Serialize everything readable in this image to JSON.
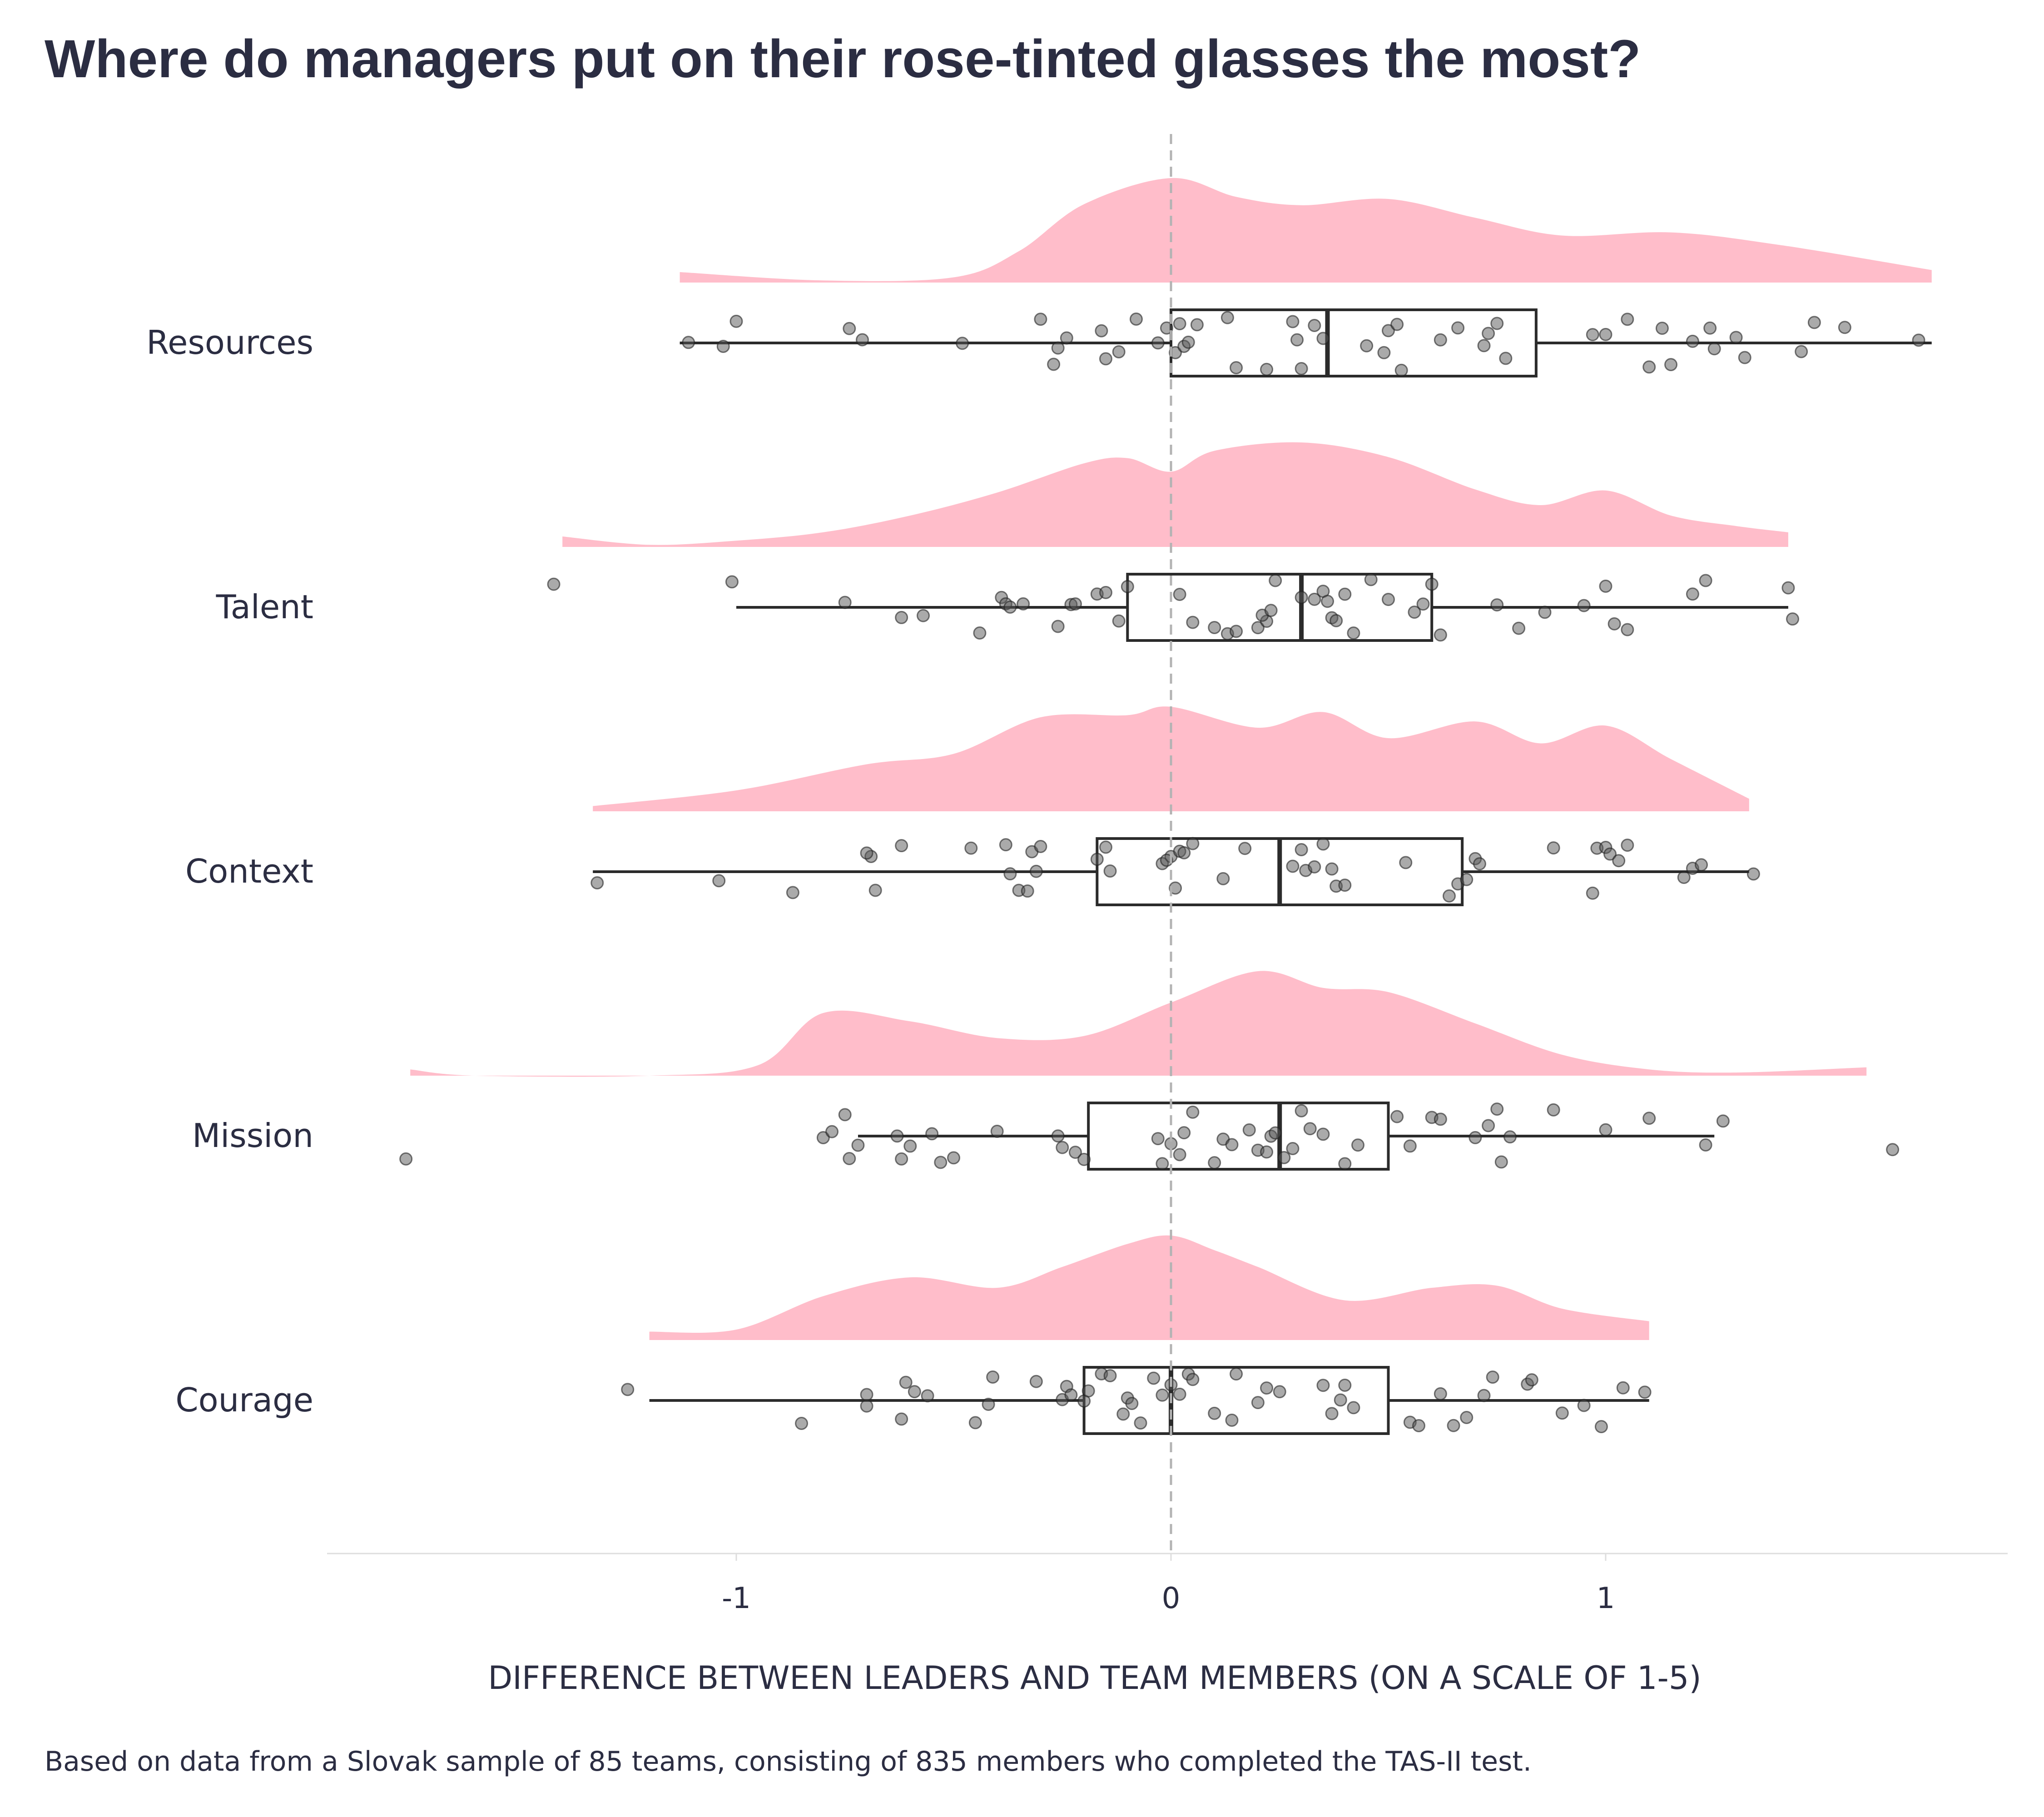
{
  "chart_data": {
    "type": "raincloud",
    "title": "Where do managers put on their rose-tinted glasses the most?",
    "xlabel": "DIFFERENCE BETWEEN LEADERS AND TEAM MEMBERS (ON A SCALE OF 1-5)",
    "caption": "Based on data from a Slovak sample of 85 teams, consisting of 835 members who completed the TAS-II test.",
    "xlim": [
      -1.95,
      1.9
    ],
    "xticks": [
      -1,
      0,
      1
    ],
    "xtick_labels": [
      "-1",
      "0",
      "1"
    ],
    "reference_line": 0,
    "colors": {
      "density": "#ffbdca",
      "box": "#2b2b2b",
      "points": "#555555",
      "text": "#2b2d42"
    },
    "categories": [
      "Resources",
      "Talent",
      "Context",
      "Mission",
      "Courage"
    ],
    "series": [
      {
        "name": "Resources",
        "box": {
          "whisker_low": -1.13,
          "q1": 0.0,
          "median": 0.36,
          "q3": 0.84,
          "whisker_high": 1.75
        },
        "density": {
          "x": [
            -1.13,
            -0.8,
            -0.5,
            -0.35,
            -0.2,
            0.0,
            0.15,
            0.3,
            0.5,
            0.7,
            0.9,
            1.15,
            1.4,
            1.75
          ],
          "y": [
            0.1,
            0.02,
            0.05,
            0.3,
            0.75,
            1.0,
            0.82,
            0.74,
            0.8,
            0.62,
            0.45,
            0.48,
            0.36,
            0.12
          ]
        },
        "points": [
          -1.11,
          -1.03,
          -1.0,
          -0.74,
          -0.71,
          -0.48,
          -0.3,
          -0.27,
          -0.26,
          -0.24,
          -0.16,
          -0.15,
          -0.12,
          -0.08,
          -0.03,
          -0.01,
          0.01,
          0.02,
          0.03,
          0.04,
          0.06,
          0.13,
          0.15,
          0.22,
          0.28,
          0.29,
          0.3,
          0.33,
          0.35,
          0.45,
          0.49,
          0.5,
          0.52,
          0.53,
          0.62,
          0.66,
          0.72,
          0.73,
          0.75,
          0.77,
          0.97,
          1.0,
          1.05,
          1.1,
          1.13,
          1.15,
          1.2,
          1.24,
          1.25,
          1.3,
          1.32,
          1.45,
          1.48,
          1.55,
          1.72
        ]
      },
      {
        "name": "Talent",
        "box": {
          "whisker_low": -1.0,
          "q1": -0.1,
          "median": 0.3,
          "q3": 0.6,
          "whisker_high": 1.42
        },
        "density": {
          "x": [
            -1.4,
            -1.2,
            -1.0,
            -0.8,
            -0.6,
            -0.4,
            -0.2,
            -0.1,
            0.0,
            0.1,
            0.3,
            0.5,
            0.7,
            0.85,
            1.0,
            1.15,
            1.3,
            1.42
          ],
          "y": [
            0.1,
            0.02,
            0.06,
            0.14,
            0.3,
            0.52,
            0.8,
            0.85,
            0.72,
            0.92,
            1.0,
            0.86,
            0.55,
            0.4,
            0.54,
            0.3,
            0.2,
            0.14
          ]
        },
        "points": [
          -1.42,
          -1.01,
          -0.75,
          -0.62,
          -0.57,
          -0.44,
          -0.39,
          -0.38,
          -0.37,
          -0.34,
          -0.26,
          -0.23,
          -0.22,
          -0.17,
          -0.15,
          -0.12,
          -0.1,
          0.02,
          0.05,
          0.1,
          0.13,
          0.15,
          0.2,
          0.22,
          0.21,
          0.23,
          0.24,
          0.3,
          0.33,
          0.35,
          0.36,
          0.37,
          0.38,
          0.4,
          0.42,
          0.46,
          0.5,
          0.56,
          0.58,
          0.6,
          0.62,
          0.75,
          0.8,
          0.86,
          0.95,
          1.0,
          1.02,
          1.05,
          1.2,
          1.23,
          1.42,
          1.43
        ]
      },
      {
        "name": "Context",
        "box": {
          "whisker_low": -1.33,
          "q1": -0.17,
          "median": 0.25,
          "q3": 0.67,
          "whisker_high": 1.33
        },
        "density": {
          "x": [
            -1.33,
            -1.0,
            -0.7,
            -0.5,
            -0.3,
            -0.1,
            0.0,
            0.2,
            0.35,
            0.5,
            0.7,
            0.85,
            1.0,
            1.15,
            1.33
          ],
          "y": [
            0.05,
            0.2,
            0.45,
            0.55,
            0.9,
            0.92,
            1.0,
            0.8,
            0.95,
            0.7,
            0.86,
            0.65,
            0.82,
            0.5,
            0.12
          ]
        },
        "points": [
          -1.32,
          -1.04,
          -0.87,
          -0.69,
          -0.68,
          -0.7,
          -0.62,
          -0.46,
          -0.38,
          -0.37,
          -0.35,
          -0.33,
          -0.32,
          -0.31,
          -0.3,
          -0.17,
          -0.14,
          -0.15,
          -0.02,
          0.0,
          -0.01,
          0.01,
          0.02,
          0.03,
          0.05,
          0.12,
          0.17,
          0.28,
          0.3,
          0.31,
          0.33,
          0.35,
          0.38,
          0.37,
          0.4,
          0.54,
          0.64,
          0.66,
          0.68,
          0.7,
          0.71,
          0.88,
          0.97,
          0.98,
          1.0,
          1.01,
          1.03,
          1.05,
          1.18,
          1.2,
          1.22,
          1.34
        ]
      },
      {
        "name": "Mission",
        "box": {
          "whisker_low": -0.72,
          "q1": -0.19,
          "median": 0.25,
          "q3": 0.5,
          "whisker_high": 1.25
        },
        "density": {
          "x": [
            -1.75,
            -1.6,
            -1.2,
            -0.95,
            -0.8,
            -0.6,
            -0.4,
            -0.2,
            0.0,
            0.2,
            0.35,
            0.5,
            0.7,
            0.9,
            1.1,
            1.3,
            1.6
          ],
          "y": [
            0.06,
            0.0,
            0.0,
            0.1,
            0.6,
            0.52,
            0.36,
            0.38,
            0.7,
            1.0,
            0.84,
            0.8,
            0.5,
            0.2,
            0.06,
            0.03,
            0.08
          ]
        },
        "points": [
          -1.76,
          -0.8,
          -0.78,
          -0.75,
          -0.74,
          -0.72,
          -0.63,
          -0.62,
          -0.6,
          -0.55,
          -0.53,
          -0.5,
          -0.4,
          -0.26,
          -0.25,
          -0.22,
          -0.2,
          -0.03,
          -0.02,
          0.0,
          0.02,
          0.03,
          0.05,
          0.1,
          0.12,
          0.14,
          0.18,
          0.2,
          0.22,
          0.23,
          0.24,
          0.26,
          0.28,
          0.3,
          0.32,
          0.35,
          0.4,
          0.43,
          0.52,
          0.55,
          0.6,
          0.62,
          0.7,
          0.73,
          0.75,
          0.76,
          0.78,
          0.88,
          1.0,
          1.1,
          1.23,
          1.27,
          1.66
        ]
      },
      {
        "name": "Courage",
        "box": {
          "whisker_low": -1.2,
          "q1": -0.2,
          "median": 0.0,
          "q3": 0.5,
          "whisker_high": 1.1
        },
        "density": {
          "x": [
            -1.2,
            -1.0,
            -0.8,
            -0.6,
            -0.4,
            -0.25,
            -0.1,
            0.0,
            0.1,
            0.2,
            0.4,
            0.6,
            0.75,
            0.9,
            1.1
          ],
          "y": [
            0.08,
            0.1,
            0.42,
            0.6,
            0.5,
            0.7,
            0.92,
            1.0,
            0.86,
            0.7,
            0.38,
            0.5,
            0.52,
            0.3,
            0.18
          ]
        },
        "points": [
          -1.25,
          -0.85,
          -0.7,
          -0.7,
          -0.62,
          -0.61,
          -0.59,
          -0.56,
          -0.45,
          -0.42,
          -0.41,
          -0.31,
          -0.25,
          -0.24,
          -0.23,
          -0.2,
          -0.19,
          -0.16,
          -0.14,
          -0.11,
          -0.1,
          -0.09,
          -0.07,
          -0.04,
          -0.02,
          0.0,
          0.02,
          0.04,
          0.05,
          0.1,
          0.14,
          0.15,
          0.2,
          0.22,
          0.25,
          0.35,
          0.37,
          0.39,
          0.4,
          0.42,
          0.55,
          0.57,
          0.62,
          0.65,
          0.68,
          0.72,
          0.74,
          0.82,
          0.83,
          0.9,
          0.95,
          0.99,
          1.04,
          1.09
        ]
      }
    ]
  }
}
